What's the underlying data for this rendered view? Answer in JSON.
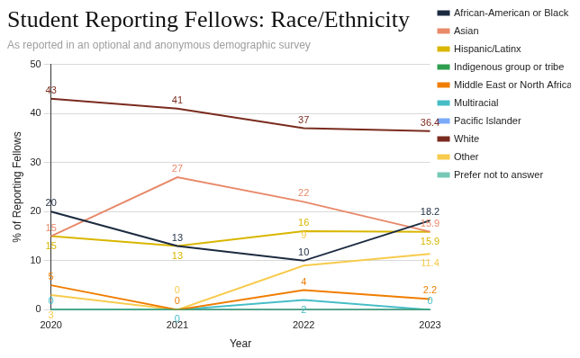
{
  "chart_data": {
    "type": "line",
    "title": "Student Reporting Fellows: Race/Ethnicity",
    "subtitle": "As reported in an optional and anonymous demographic survey",
    "x_label": "Year",
    "y_label": "% of Reporting Fellows",
    "categories": [
      "2020",
      "2021",
      "2022",
      "2023"
    ],
    "ylim": [
      0,
      50
    ],
    "yticks": [
      0,
      10,
      20,
      30,
      40,
      50
    ],
    "grid": true,
    "legend": "right",
    "marker": "none",
    "series": [
      {
        "name": "African-American or Black",
        "color": "#1c2b40",
        "values": [
          20,
          13,
          10,
          18.2
        ],
        "data_labels": true
      },
      {
        "name": "Asian",
        "color": "#e8896a",
        "values": [
          15,
          27,
          22,
          15.9
        ],
        "data_labels": true
      },
      {
        "name": "Hispanic/Latinx",
        "color": "#d9b600",
        "values": [
          15,
          13,
          16,
          15.9
        ],
        "data_labels": true
      },
      {
        "name": "Indigenous group or tribe",
        "color": "#2e9e4f",
        "values": [
          0,
          0,
          0,
          0
        ],
        "data_labels": false
      },
      {
        "name": "Middle East or North African",
        "color": "#f07d00",
        "values": [
          5,
          0,
          4,
          2.2
        ],
        "data_labels": true
      },
      {
        "name": "Multiracial",
        "color": "#46bdc6",
        "values": [
          0,
          0,
          2,
          0
        ],
        "data_labels": true
      },
      {
        "name": "Pacific Islander",
        "color": "#7baaf7",
        "values": [
          0,
          0,
          0,
          0
        ],
        "data_labels": false
      },
      {
        "name": "White",
        "color": "#7a2b1e",
        "values": [
          43,
          41,
          37,
          36.4
        ],
        "data_labels": true
      },
      {
        "name": "Other",
        "color": "#f7cb4d",
        "values": [
          3,
          0,
          9,
          11.4
        ],
        "data_labels": true
      },
      {
        "name": "Prefer not to answer",
        "color": "#76c8b5",
        "values": [
          0,
          0,
          0,
          0
        ],
        "data_labels": false
      }
    ]
  }
}
